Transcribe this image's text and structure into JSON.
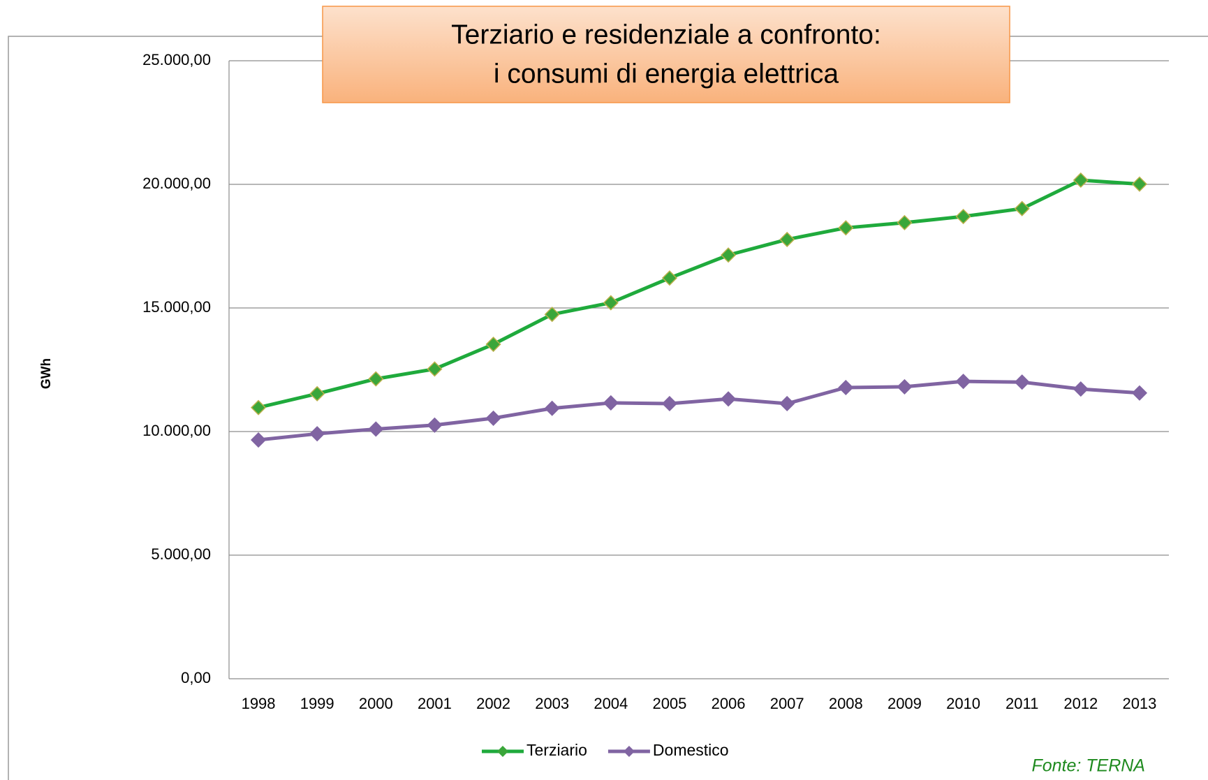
{
  "chart_data": {
    "type": "line",
    "title": [
      "Terziario e residenziale a confronto:",
      "i consumi di energia elettrica"
    ],
    "y_label": "GWh",
    "source": "Fonte: TERNA",
    "categories": [
      "1998",
      "1999",
      "2000",
      "2001",
      "2002",
      "2003",
      "2004",
      "2005",
      "2006",
      "2007",
      "2008",
      "2009",
      "2010",
      "2011",
      "2012",
      "2013"
    ],
    "series": [
      {
        "name": "Terziario",
        "color": "#1faa3c",
        "marker_color": "#3aa63a",
        "values": [
          10970,
          11530,
          12130,
          12530,
          13530,
          14740,
          15210,
          16210,
          17140,
          17770,
          18240,
          18450,
          18700,
          19020,
          20170,
          20010
        ]
      },
      {
        "name": "Domestico",
        "color": "#8064a2",
        "marker_color": "#8064a2",
        "values": [
          9660,
          9910,
          10100,
          10260,
          10540,
          10940,
          11160,
          11130,
          11320,
          11130,
          11780,
          11810,
          12030,
          12000,
          11720,
          11560
        ]
      }
    ],
    "ylim": [
      0,
      25000
    ],
    "yticks": [
      {
        "value": 0,
        "label": "0,00"
      },
      {
        "value": 5000,
        "label": "5.000,00"
      },
      {
        "value": 10000,
        "label": "10.000,00"
      },
      {
        "value": 15000,
        "label": "15.000,00"
      },
      {
        "value": 20000,
        "label": "20.000,00"
      },
      {
        "value": 25000,
        "label": "25.000,00"
      }
    ],
    "grid": true,
    "legend": "bottom"
  }
}
